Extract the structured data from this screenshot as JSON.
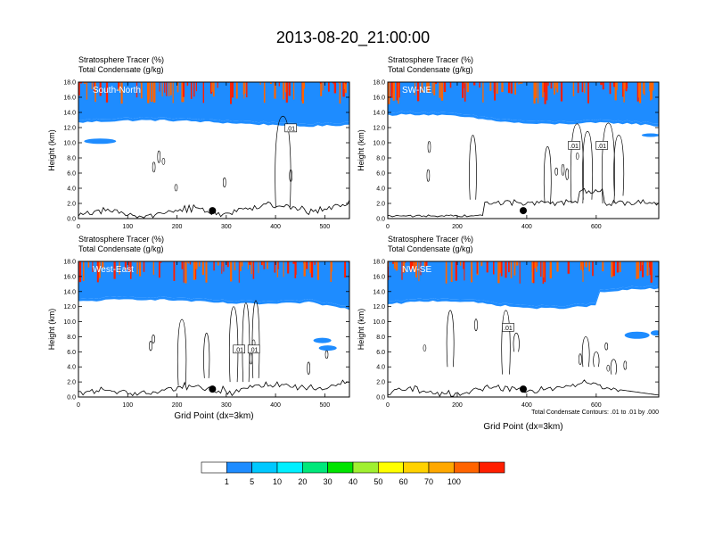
{
  "title": "2013-08-20_21:00:00",
  "footnote": "Total Condensate Contours: .01 to .01 by .000",
  "chart_data": {
    "type": "heatmap",
    "title": "2013-08-20_21:00:00",
    "variable_lines": [
      "Stratosphere Tracer   (%)",
      "Total Condensate   (g/kg)"
    ],
    "ylabel": "Height (km)",
    "xlabel": "Grid Point (dx=3km)",
    "ylim": [
      0,
      18
    ],
    "yticks": [
      "0.0",
      "2.0",
      "4.0",
      "6.0",
      "8.0",
      "10.0",
      "12.0",
      "14.0",
      "16.0",
      "18.0"
    ],
    "contour_label": ".01",
    "colorbar": {
      "levels": [
        "1",
        "5",
        "10",
        "20",
        "30",
        "40",
        "50",
        "60",
        "70",
        "100"
      ],
      "colors": [
        "#ffffff",
        "#1e8cff",
        "#00c8ff",
        "#00f0ff",
        "#00e87a",
        "#00e400",
        "#a0f030",
        "#ffff00",
        "#ffd200",
        "#ffa800",
        "#ff6400",
        "#ff1e00"
      ]
    },
    "panels": [
      {
        "name": "South-North",
        "xmax": 550,
        "xticks": [
          "0",
          "100",
          "200",
          "300",
          "400",
          "500"
        ],
        "marker_x": 272,
        "contour_labels_x": [
          430
        ],
        "show_xlabel": false
      },
      {
        "name": "SW-NE",
        "xmax": 780,
        "xticks": [
          "0",
          "200",
          "400",
          "600"
        ],
        "marker_x": 390,
        "contour_labels_x": [
          535,
          615
        ],
        "show_xlabel": false
      },
      {
        "name": "West-East",
        "xmax": 550,
        "xticks": [
          "0",
          "100",
          "200",
          "300",
          "400",
          "500"
        ],
        "marker_x": 272,
        "contour_labels_x": [
          325,
          355
        ],
        "show_xlabel": true
      },
      {
        "name": "NW-SE",
        "xmax": 780,
        "xticks": [
          "0",
          "200",
          "400",
          "600"
        ],
        "marker_x": 390,
        "contour_labels_x": [
          345
        ],
        "show_xlabel": true
      }
    ]
  }
}
